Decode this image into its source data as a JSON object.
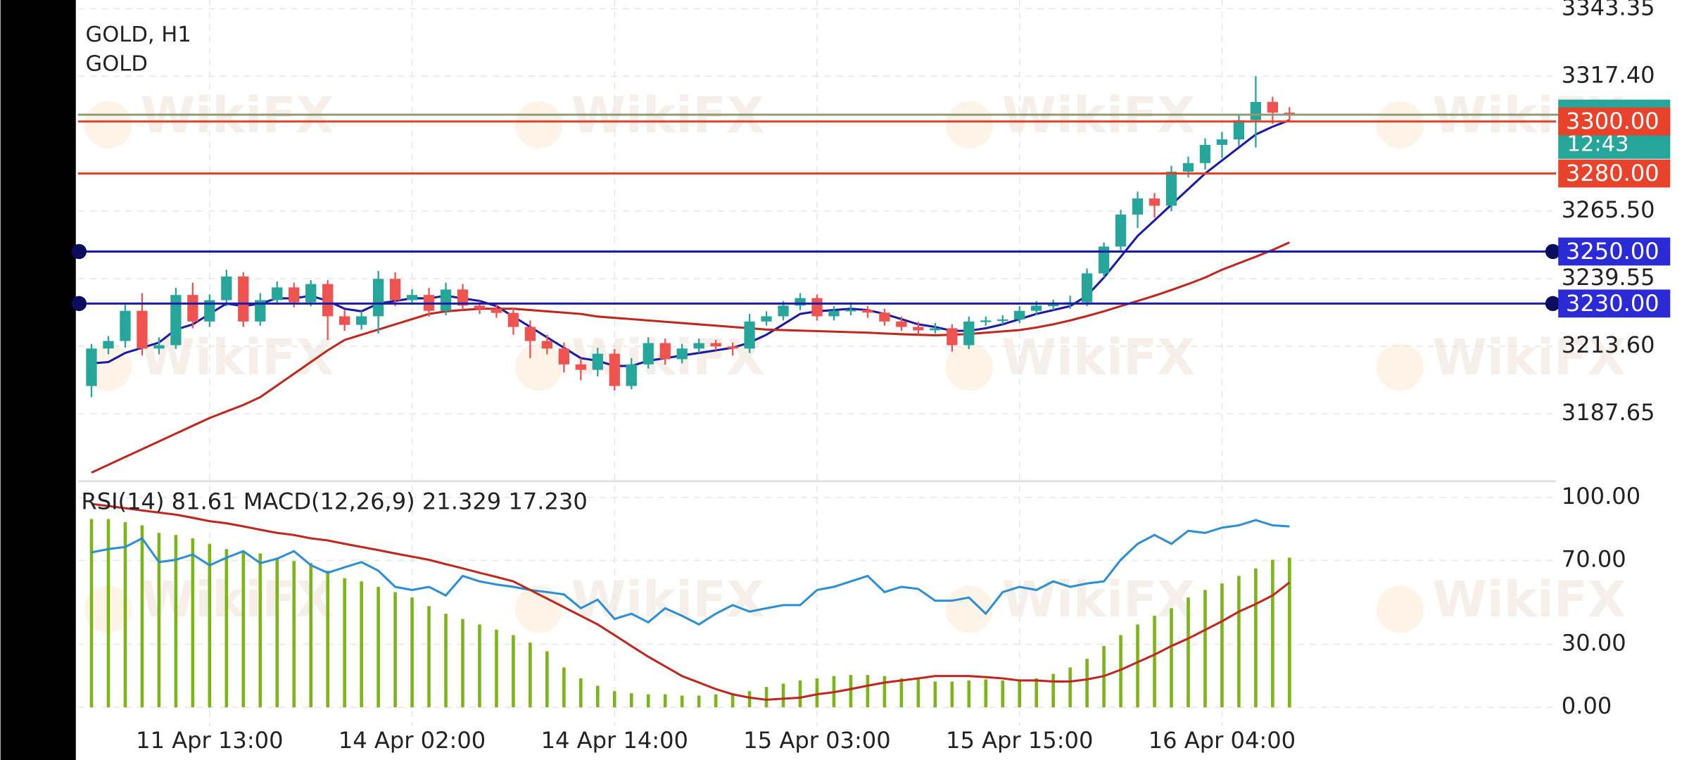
{
  "chart_data": [
    {
      "type": "candlestick",
      "title": "GOLD, H1",
      "subtitle": "GOLD",
      "watermark": "WikiFX",
      "countdown": "12:43",
      "up_color": "#26a69a",
      "down_color": "#ef5350",
      "grid": true,
      "ylim": [
        3161.7,
        3346.7
      ],
      "yticks": [
        3187.65,
        {
          "value": 3213.6,
          "label": "3213.60"
        },
        3239.55,
        {
          "value": 3265.5,
          "label": "3265.50"
        },
        {
          "value": 3317.4,
          "label": "3317.40"
        },
        3343.35
      ],
      "xlim": [
        -0.8,
        86.8
      ],
      "xticks": [
        {
          "value": 7,
          "label": "11 Apr 13:00"
        },
        {
          "value": 19,
          "label": "14 Apr 02:00"
        },
        {
          "value": 31,
          "label": "14 Apr 14:00"
        },
        {
          "value": 43,
          "label": "15 Apr 03:00"
        },
        {
          "value": 55,
          "label": "15 Apr 15:00"
        },
        {
          "value": 67,
          "label": "16 Apr 04:00"
        }
      ],
      "levels": [
        {
          "value": 3300,
          "label": "3300.00",
          "color": "#e8432a"
        },
        {
          "value": 3280,
          "label": "3280.00",
          "color": "#e8432a"
        },
        {
          "value": 3250,
          "label": "3250.00",
          "color": "#1c1ca8"
        },
        {
          "value": 3230,
          "label": "3230.00",
          "color": "#1c1ca8"
        }
      ],
      "ohlc": [
        [
          3198.3,
          3214.5,
          3194.0,
          3212.7
        ],
        [
          3212.7,
          3217.5,
          3210.5,
          3215.6
        ],
        [
          3215.6,
          3229.5,
          3213.0,
          3227.2
        ],
        [
          3227.2,
          3234.0,
          3210.0,
          3212.7
        ],
        [
          3212.7,
          3217.0,
          3210.5,
          3214.0
        ],
        [
          3214.0,
          3236.0,
          3212.5,
          3233.3
        ],
        [
          3233.3,
          3238.0,
          3220.5,
          3223.1
        ],
        [
          3223.1,
          3233.5,
          3221.0,
          3231.3
        ],
        [
          3231.3,
          3243.0,
          3229.0,
          3240.4
        ],
        [
          3240.4,
          3242.0,
          3221.0,
          3223.1
        ],
        [
          3223.1,
          3234.0,
          3221.5,
          3231.3
        ],
        [
          3231.3,
          3238.5,
          3229.5,
          3236.2
        ],
        [
          3236.2,
          3238.0,
          3228.5,
          3230.5
        ],
        [
          3230.5,
          3239.0,
          3229.0,
          3237.5
        ],
        [
          3237.5,
          3239.0,
          3216.0,
          3225.1
        ],
        [
          3225.1,
          3227.5,
          3219.5,
          3221.8
        ],
        [
          3221.8,
          3227.0,
          3220.0,
          3225.1
        ],
        [
          3225.1,
          3242.5,
          3218.5,
          3239.5
        ],
        [
          3239.5,
          3242.0,
          3229.0,
          3231.3
        ],
        [
          3231.3,
          3235.5,
          3229.5,
          3233.3
        ],
        [
          3233.3,
          3236.0,
          3225.0,
          3227.2
        ],
        [
          3227.2,
          3238.0,
          3225.5,
          3235.4
        ],
        [
          3235.4,
          3237.5,
          3227.5,
          3229.2
        ],
        [
          3229.2,
          3231.0,
          3226.0,
          3228.0
        ],
        [
          3228.0,
          3230.0,
          3224.5,
          3226.4
        ],
        [
          3226.4,
          3228.5,
          3218.0,
          3221.0
        ],
        [
          3221.0,
          3223.5,
          3209.0,
          3215.6
        ],
        [
          3215.6,
          3218.0,
          3210.5,
          3212.7
        ],
        [
          3212.7,
          3215.0,
          3203.5,
          3206.6
        ],
        [
          3206.6,
          3209.0,
          3200.5,
          3204.5
        ],
        [
          3204.5,
          3213.0,
          3202.0,
          3210.7
        ],
        [
          3210.7,
          3212.5,
          3196.5,
          3198.3
        ],
        [
          3198.3,
          3209.0,
          3197.0,
          3206.6
        ],
        [
          3206.6,
          3217.0,
          3205.0,
          3214.8
        ],
        [
          3214.8,
          3216.5,
          3206.5,
          3208.6
        ],
        [
          3208.6,
          3214.5,
          3207.0,
          3212.7
        ],
        [
          3212.7,
          3216.5,
          3211.0,
          3214.8
        ],
        [
          3214.8,
          3216.0,
          3212.0,
          3213.5
        ],
        [
          3213.5,
          3215.0,
          3210.0,
          3212.7
        ],
        [
          3212.7,
          3226.0,
          3211.0,
          3223.1
        ],
        [
          3223.1,
          3227.0,
          3221.5,
          3225.1
        ],
        [
          3225.1,
          3231.0,
          3223.5,
          3229.2
        ],
        [
          3229.2,
          3234.0,
          3227.5,
          3232.1
        ],
        [
          3232.1,
          3233.5,
          3223.5,
          3225.1
        ],
        [
          3225.1,
          3229.0,
          3223.5,
          3227.2
        ],
        [
          3227.2,
          3230.5,
          3225.5,
          3227.6
        ],
        [
          3227.6,
          3229.0,
          3224.5,
          3226.5
        ],
        [
          3226.5,
          3228.0,
          3221.5,
          3223.1
        ],
        [
          3223.1,
          3225.0,
          3219.5,
          3221.0
        ],
        [
          3221.0,
          3223.0,
          3218.0,
          3219.7
        ],
        [
          3219.7,
          3222.5,
          3218.5,
          3220.5
        ],
        [
          3220.5,
          3222.0,
          3211.5,
          3214.0
        ],
        [
          3214.0,
          3225.0,
          3212.5,
          3223.1
        ],
        [
          3223.1,
          3225.0,
          3221.5,
          3223.5
        ],
        [
          3223.5,
          3225.5,
          3222.0,
          3223.9
        ],
        [
          3223.9,
          3229.0,
          3222.5,
          3227.2
        ],
        [
          3227.2,
          3231.0,
          3225.5,
          3229.2
        ],
        [
          3229.2,
          3231.5,
          3227.5,
          3229.6
        ],
        [
          3229.6,
          3233.0,
          3228.0,
          3230.5
        ],
        [
          3230.5,
          3243.5,
          3229.0,
          3241.6
        ],
        [
          3241.6,
          3253.5,
          3240.0,
          3251.9
        ],
        [
          3251.9,
          3266.0,
          3250.5,
          3264.2
        ],
        [
          3264.2,
          3273.0,
          3259.0,
          3270.4
        ],
        [
          3270.4,
          3272.5,
          3263.0,
          3267.6
        ],
        [
          3267.6,
          3283.0,
          3265.5,
          3280.7
        ],
        [
          3280.7,
          3286.5,
          3278.5,
          3284.0
        ],
        [
          3284.0,
          3293.5,
          3281.5,
          3291.0
        ],
        [
          3291.0,
          3296.0,
          3286.0,
          3293.1
        ],
        [
          3293.1,
          3303.0,
          3290.5,
          3300.5
        ],
        [
          3300.5,
          3317.4,
          3290.0,
          3307.5
        ],
        [
          3307.5,
          3309.5,
          3299.0,
          3303.4
        ],
        [
          3303.4,
          3305.5,
          3300.0,
          3302.6
        ]
      ],
      "series": [
        {
          "color": "#1a1aa6",
          "values": [
            3207,
            3207.5,
            3211,
            3213,
            3215,
            3220,
            3222,
            3226,
            3230,
            3229,
            3230,
            3232,
            3232,
            3233,
            3231,
            3228,
            3227,
            3230,
            3231,
            3232,
            3232,
            3233,
            3232,
            3231,
            3229,
            3225,
            3221,
            3217,
            3213,
            3209,
            3208,
            3206,
            3206,
            3208,
            3209,
            3210,
            3211,
            3212,
            3213,
            3215,
            3218,
            3222,
            3226,
            3227,
            3227.5,
            3228,
            3227.5,
            3226,
            3224,
            3222,
            3221,
            3219.5,
            3219.5,
            3220.5,
            3222,
            3224,
            3226,
            3227.5,
            3229,
            3233,
            3240,
            3248,
            3256,
            3262,
            3268,
            3274,
            3280,
            3285,
            3290,
            3295,
            3298,
            3300.5
          ]
        },
        {
          "color": "#c0281e",
          "values": [
            3165,
            3168,
            3171,
            3174,
            3177,
            3180,
            3183,
            3186,
            3188.5,
            3191,
            3194,
            3198.5,
            3203,
            3207.5,
            3212,
            3216,
            3218,
            3220,
            3222,
            3224,
            3226,
            3227,
            3227.5,
            3228,
            3228,
            3228,
            3227.5,
            3227,
            3226.5,
            3226,
            3225,
            3224.5,
            3224,
            3223.5,
            3223,
            3222.5,
            3222,
            3221.5,
            3221,
            3220.5,
            3220,
            3219.8,
            3219.6,
            3219.4,
            3219.2,
            3219,
            3218.8,
            3218.5,
            3218.2,
            3218,
            3217.8,
            3218,
            3218.3,
            3218.8,
            3219.3,
            3219.8,
            3220.8,
            3222,
            3223.5,
            3225.2,
            3227,
            3229,
            3231,
            3233,
            3235.2,
            3237.5,
            3240,
            3243,
            3245.5,
            3248,
            3250.6,
            3253.5
          ]
        }
      ]
    },
    {
      "type": "indicator",
      "title": "RSI(14) 81.61 MACD(12,26,9) 21.329 17.230",
      "grid": true,
      "ylim": [
        -9.2,
        106.2
      ],
      "yticks": [
        {
          "value": 0,
          "label": "0.00"
        },
        {
          "value": 30,
          "label": "30.00"
        },
        {
          "value": 70,
          "label": "70.00"
        },
        {
          "value": 100,
          "label": "100.00"
        }
      ],
      "xlim": [
        -0.8,
        86.8
      ],
      "histogram": {
        "color": "#7cb518",
        "values": [
          89.7,
          89.7,
          88.2,
          86.7,
          83.1,
          82.1,
          80.5,
          77.9,
          75.4,
          74.4,
          73.3,
          71.3,
          69.7,
          68.7,
          65.1,
          61.5,
          60,
          57.4,
          54.9,
          52.3,
          48.2,
          44.6,
          42.1,
          39.5,
          37,
          34.4,
          30.8,
          26.7,
          19,
          13.8,
          10.3,
          7.7,
          6.7,
          6.2,
          6.2,
          5.6,
          5.6,
          6.2,
          6.7,
          7.7,
          9.7,
          11.3,
          12.8,
          13.8,
          14.9,
          15.4,
          15.4,
          14.9,
          13.8,
          13.3,
          12.3,
          12.3,
          12.8,
          13.3,
          12.8,
          12.8,
          13.8,
          15.9,
          19,
          23.1,
          29.2,
          34.4,
          39.5,
          43.6,
          47.2,
          52.3,
          55.9,
          59,
          62.6,
          66.2,
          70.3,
          71.3
        ]
      },
      "series": [
        {
          "color": "#2a8fd6",
          "values": [
            73.8,
            75.4,
            76.4,
            80.5,
            69.2,
            70.3,
            72.8,
            67.7,
            71.3,
            74.4,
            68.7,
            70.8,
            74.4,
            67.7,
            64.1,
            66.7,
            69.2,
            65.1,
            57.4,
            55.9,
            57.4,
            53.3,
            62.6,
            60,
            58.5,
            57.4,
            55.9,
            54.9,
            53.8,
            47.2,
            51.3,
            42.1,
            44.6,
            40.5,
            47.2,
            43.6,
            39.5,
            44.6,
            48.7,
            45.6,
            47.2,
            48.7,
            48.7,
            55.9,
            57.4,
            60,
            62.6,
            54.9,
            57.4,
            56.4,
            50.8,
            50.8,
            52.3,
            44.6,
            54.9,
            57.4,
            55.9,
            60,
            57.4,
            59,
            60,
            70.3,
            77.9,
            82.1,
            77.9,
            84.1,
            83.1,
            85.6,
            86.7,
            89.2,
            86.7,
            86.2
          ]
        },
        {
          "color": "#c0281e",
          "values": [
            96.9,
            95.9,
            94.9,
            93.8,
            92.8,
            91.8,
            90.3,
            88.7,
            87.7,
            86.2,
            84.6,
            83.1,
            82.1,
            80.5,
            79.5,
            77.9,
            76.4,
            74.9,
            73.3,
            71.8,
            70.3,
            68.2,
            66.2,
            64.1,
            62.1,
            60,
            55.9,
            51.8,
            47.7,
            43.6,
            39.5,
            34.4,
            29.2,
            24.1,
            19.5,
            14.9,
            11.8,
            8.7,
            6.2,
            4.6,
            3.6,
            4.1,
            4.6,
            6.2,
            7.2,
            8.7,
            10.3,
            11.8,
            12.8,
            13.8,
            14.9,
            14.9,
            14.9,
            14.4,
            13.8,
            12.8,
            12.8,
            12.3,
            12.3,
            13.3,
            14.9,
            17.9,
            21.5,
            25.1,
            29.2,
            32.8,
            36.9,
            41,
            45.6,
            49.2,
            53.3,
            59.5
          ]
        }
      ]
    }
  ]
}
